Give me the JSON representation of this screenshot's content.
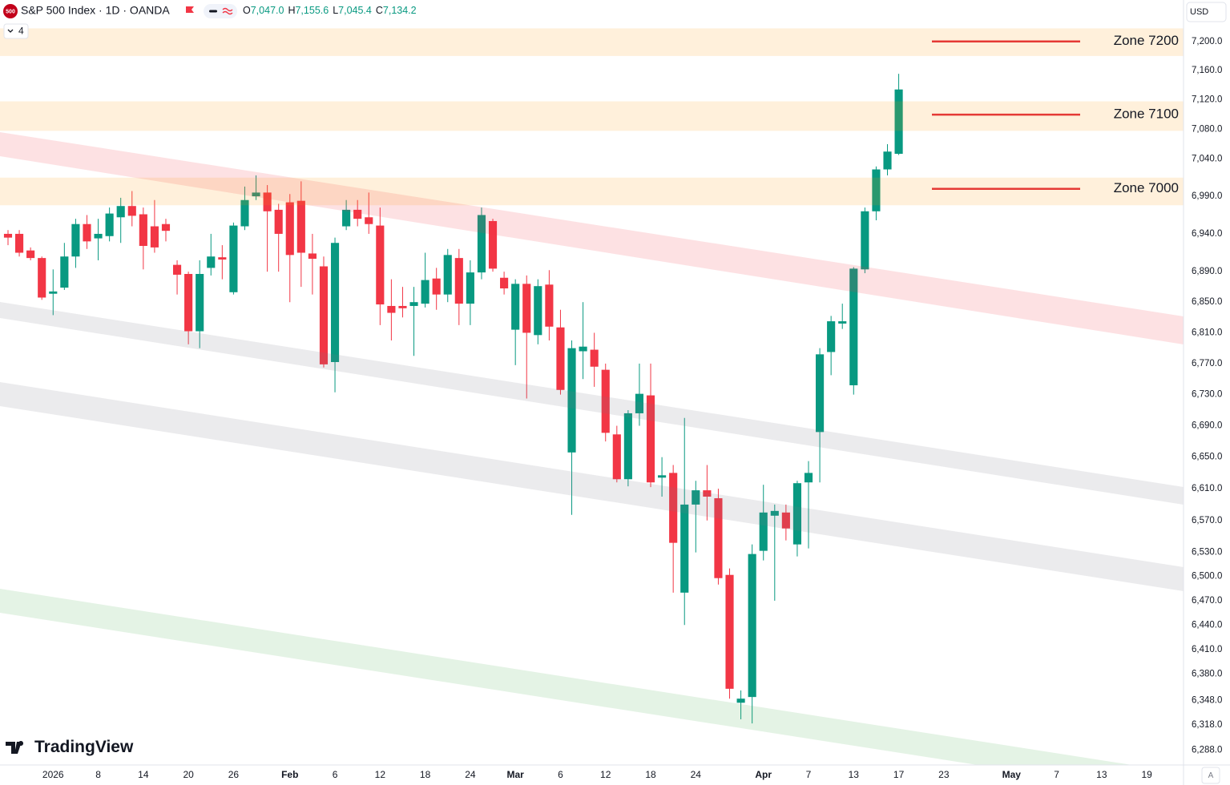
{
  "header": {
    "badge": "500",
    "symbol": "S&P 500 Index · 1D · OANDA",
    "ohlc": [
      {
        "key": "O",
        "value": "7,047.0"
      },
      {
        "key": "H",
        "value": "7,155.6"
      },
      {
        "key": "L",
        "value": "7,045.4"
      },
      {
        "key": "C",
        "value": "7,134.2"
      }
    ],
    "layers": "4",
    "currency": "USD",
    "logo": "TradingView",
    "auto": "A"
  },
  "chart_data": {
    "type": "candlestick",
    "log_scale": true,
    "grid": false,
    "up_color": "#089981",
    "down_color": "#f23645",
    "open": [
      6940,
      6940,
      6918,
      6908,
      6861,
      6869,
      6910,
      6953,
      6934,
      6937,
      6962,
      6977,
      6966,
      6950,
      6953,
      6899,
      6887,
      6812,
      6895,
      6909,
      6863,
      6950,
      6990,
      6995,
      6972,
      6982,
      6984,
      6914,
      6897,
      6772,
      6950,
      6972,
      6962,
      6951,
      6845,
      6845,
      6845,
      6848,
      6881,
      6860,
      6908,
      6848,
      6889,
      6957,
      6882,
      6814,
      6874,
      6807,
      6873,
      6817,
      6656,
      6786,
      6788,
      6762,
      6679,
      6622,
      6706,
      6729,
      6624,
      6630,
      6480,
      6590,
      6608,
      6598,
      6502,
      6345,
      6352,
      6532,
      6576,
      6580,
      6540,
      6618,
      6682,
      6785,
      6822,
      6742,
      6893,
      6970,
      7026,
      7047.0
    ],
    "high": [
      6945,
      6945,
      6922,
      6910,
      6893,
      6928,
      6960,
      6965,
      6960,
      6975,
      6988,
      6997,
      6975,
      6985,
      6960,
      6905,
      6890,
      6905,
      6940,
      6925,
      6955,
      7003,
      7018,
      7005,
      6980,
      6993,
      7010,
      6940,
      6910,
      6935,
      6985,
      6985,
      6995,
      6975,
      6880,
      6870,
      6870,
      6915,
      6895,
      6920,
      6920,
      6905,
      6975,
      6960,
      6890,
      6880,
      6885,
      6880,
      6892,
      6840,
      6800,
      6850,
      6810,
      6770,
      6690,
      6710,
      6770,
      6770,
      6650,
      6640,
      6700,
      6620,
      6640,
      6610,
      6510,
      6360,
      6540,
      6615,
      6590,
      6590,
      6620,
      6645,
      6790,
      6832,
      6848,
      6896,
      6975,
      7030,
      7060,
      7155.6
    ],
    "low": [
      6925,
      6910,
      6905,
      6853,
      6833,
      6866,
      6895,
      6920,
      6905,
      6930,
      6928,
      6950,
      6893,
      6915,
      6930,
      6860,
      6795,
      6790,
      6885,
      6880,
      6860,
      6945,
      6985,
      6890,
      6890,
      6850,
      6870,
      6860,
      6765,
      6733,
      6945,
      6950,
      6940,
      6820,
      6800,
      6830,
      6780,
      6843,
      6840,
      6850,
      6820,
      6820,
      6880,
      6890,
      6860,
      6768,
      6725,
      6795,
      6800,
      6730,
      6577,
      6750,
      6740,
      6670,
      6618,
      6613,
      6690,
      6612,
      6600,
      6480,
      6440,
      6530,
      6570,
      6490,
      6350,
      6325,
      6320,
      6520,
      6470,
      6545,
      6525,
      6535,
      6618,
      6755,
      6815,
      6730,
      6888,
      6958,
      7018,
      7045.4
    ],
    "close": [
      6935,
      6915,
      6908,
      6856,
      6864,
      6910,
      6953,
      6930,
      6940,
      6967,
      6977,
      6964,
      6924,
      6922,
      6944,
      6886,
      6812,
      6887,
      6910,
      6906,
      6951,
      6985,
      6995,
      6970,
      6940,
      6912,
      6915,
      6907,
      6769,
      6928,
      6972,
      6960,
      6953,
      6847,
      6836,
      6842,
      6850,
      6879,
      6860,
      6912,
      6848,
      6889,
      6965,
      6894,
      6868,
      6874,
      6810,
      6871,
      6818,
      6736,
      6790,
      6792,
      6766,
      6681,
      6622,
      6706,
      6731,
      6618,
      6627,
      6542,
      6590,
      6608,
      6600,
      6498,
      6362,
      6350,
      6528,
      6580,
      6582,
      6560,
      6617,
      6630,
      6782,
      6825,
      6825,
      6894,
      6970,
      7026,
      7050,
      7134.2
    ],
    "xlim": [
      -0.71,
      104.26
    ],
    "xticks": [
      {
        "value": 4,
        "label": "2026"
      },
      {
        "value": 8,
        "label": "8"
      },
      {
        "value": 12,
        "label": "14"
      },
      {
        "value": 16,
        "label": "20"
      },
      {
        "value": 20,
        "label": "26"
      },
      {
        "value": 25,
        "label": "Feb"
      },
      {
        "value": 29,
        "label": "6"
      },
      {
        "value": 33,
        "label": "12"
      },
      {
        "value": 37,
        "label": "18"
      },
      {
        "value": 41,
        "label": "24"
      },
      {
        "value": 45,
        "label": "Mar"
      },
      {
        "value": 49,
        "label": "6"
      },
      {
        "value": 53,
        "label": "12"
      },
      {
        "value": 57,
        "label": "18"
      },
      {
        "value": 61,
        "label": "24"
      },
      {
        "value": 67,
        "label": "Apr"
      },
      {
        "value": 71,
        "label": "7"
      },
      {
        "value": 75,
        "label": "13"
      },
      {
        "value": 79,
        "label": "17"
      },
      {
        "value": 83,
        "label": "23"
      },
      {
        "value": 89,
        "label": "May"
      },
      {
        "value": 93,
        "label": "7"
      },
      {
        "value": 97,
        "label": "13"
      },
      {
        "value": 101,
        "label": "19"
      }
    ],
    "ylim": [
      6270,
      7224
    ],
    "yticks": [
      {
        "value": 7200,
        "label": "7,200.0"
      },
      {
        "value": 7160,
        "label": "7,160.0"
      },
      {
        "value": 7120,
        "label": "7,120.0"
      },
      {
        "value": 7080,
        "label": "7,080.0"
      },
      {
        "value": 7040,
        "label": "7,040.0"
      },
      {
        "value": 6990,
        "label": "6,990.0"
      },
      {
        "value": 6940,
        "label": "6,940.0"
      },
      {
        "value": 6890,
        "label": "6,890.0"
      },
      {
        "value": 6850,
        "label": "6,850.0"
      },
      {
        "value": 6810,
        "label": "6,810.0"
      },
      {
        "value": 6770,
        "label": "6,770.0"
      },
      {
        "value": 6730,
        "label": "6,730.0"
      },
      {
        "value": 6690,
        "label": "6,690.0"
      },
      {
        "value": 6650,
        "label": "6,650.0"
      },
      {
        "value": 6610,
        "label": "6,610.0"
      },
      {
        "value": 6570,
        "label": "6,570.0"
      },
      {
        "value": 6530,
        "label": "6,530.0"
      },
      {
        "value": 6500,
        "label": "6,500.0"
      },
      {
        "value": 6470,
        "label": "6,470.0"
      },
      {
        "value": 6440,
        "label": "6,440.0"
      },
      {
        "value": 6410,
        "label": "6,410.0"
      },
      {
        "value": 6380,
        "label": "6,380.0"
      },
      {
        "value": 6348,
        "label": "6,348.0"
      },
      {
        "value": 6318,
        "label": "6,318.0"
      },
      {
        "value": 6288,
        "label": "6,288.0"
      }
    ],
    "zones": [
      {
        "label": "Zone 7200",
        "value": 7200,
        "range": [
          7180,
          7218
        ],
        "color": "#e53935"
      },
      {
        "label": "Zone 7100",
        "value": 7100,
        "range": [
          7078,
          7118
        ],
        "color": "#e53935"
      },
      {
        "label": "Zone 7000",
        "value": 7000,
        "range": [
          6978,
          7015
        ],
        "color": "#e53935"
      }
    ]
  }
}
